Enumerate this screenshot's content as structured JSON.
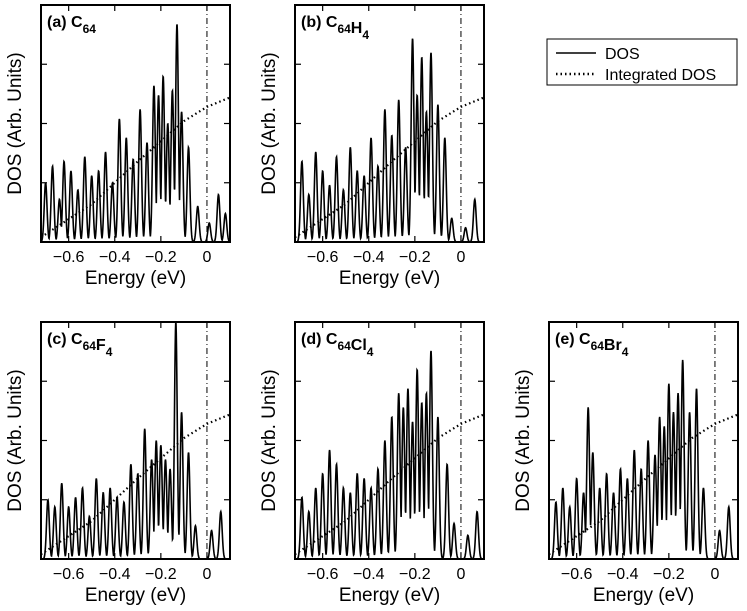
{
  "figure": {
    "legend": {
      "entries": [
        {
          "label": "DOS",
          "style": "solid"
        },
        {
          "label": "Integrated DOS",
          "style": "dotted"
        }
      ]
    }
  },
  "chart_data": [
    {
      "type": "line",
      "panel_label": "(a) C",
      "formula": [
        [
          "C",
          "64"
        ]
      ],
      "xlabel": "Energy (eV)",
      "ylabel": "DOS (Arb. Units)",
      "xlim": [
        -0.72,
        0.1
      ],
      "ylim": [
        0,
        1.0
      ],
      "xticks": [
        -0.6,
        -0.4,
        -0.2,
        0
      ],
      "xtick_labels": [
        "−0.6",
        "−0.4",
        "−0.2",
        "0"
      ],
      "fermi_level": 0,
      "peaks": [
        [
          -0.7,
          0.25
        ],
        [
          -0.67,
          0.32
        ],
        [
          -0.64,
          0.18
        ],
        [
          -0.62,
          0.34
        ],
        [
          -0.59,
          0.3
        ],
        [
          -0.56,
          0.22
        ],
        [
          -0.53,
          0.36
        ],
        [
          -0.5,
          0.28
        ],
        [
          -0.47,
          0.3
        ],
        [
          -0.44,
          0.38
        ],
        [
          -0.41,
          0.25
        ],
        [
          -0.38,
          0.52
        ],
        [
          -0.35,
          0.44
        ],
        [
          -0.32,
          0.35
        ],
        [
          -0.29,
          0.56
        ],
        [
          -0.26,
          0.42
        ],
        [
          -0.23,
          0.66
        ],
        [
          -0.21,
          0.62
        ],
        [
          -0.19,
          0.7
        ],
        [
          -0.17,
          0.5
        ],
        [
          -0.15,
          0.64
        ],
        [
          -0.13,
          0.92
        ],
        [
          -0.11,
          0.55
        ],
        [
          -0.08,
          0.4
        ],
        [
          -0.04,
          0.15
        ],
        [
          0.01,
          0.08
        ],
        [
          0.05,
          0.2
        ],
        [
          0.08,
          0.12
        ]
      ],
      "peak_width": 0.0085,
      "integrated_dos": {
        "x": [
          -0.72,
          -0.5,
          -0.3,
          -0.1,
          0.0,
          0.1
        ],
        "y": [
          0.02,
          0.16,
          0.34,
          0.51,
          0.57,
          0.61
        ]
      }
    },
    {
      "type": "line",
      "panel_label": "(b) C",
      "formula": [
        [
          "C",
          "64"
        ],
        [
          "H",
          "4"
        ]
      ],
      "xlabel": "Energy (eV)",
      "ylabel": "DOS (Arb. Units)",
      "xlim": [
        -0.72,
        0.1
      ],
      "ylim": [
        0,
        1.0
      ],
      "xticks": [
        -0.6,
        -0.4,
        -0.2,
        0
      ],
      "xtick_labels": [
        "−0.6",
        "−0.4",
        "−0.2",
        "0"
      ],
      "fermi_level": 0,
      "peaks": [
        [
          -0.69,
          0.34
        ],
        [
          -0.66,
          0.2
        ],
        [
          -0.63,
          0.38
        ],
        [
          -0.6,
          0.3
        ],
        [
          -0.57,
          0.24
        ],
        [
          -0.54,
          0.36
        ],
        [
          -0.51,
          0.22
        ],
        [
          -0.48,
          0.4
        ],
        [
          -0.45,
          0.3
        ],
        [
          -0.42,
          0.28
        ],
        [
          -0.39,
          0.44
        ],
        [
          -0.36,
          0.32
        ],
        [
          -0.33,
          0.56
        ],
        [
          -0.3,
          0.45
        ],
        [
          -0.27,
          0.6
        ],
        [
          -0.24,
          0.4
        ],
        [
          -0.21,
          0.86
        ],
        [
          -0.19,
          0.62
        ],
        [
          -0.17,
          0.78
        ],
        [
          -0.15,
          0.55
        ],
        [
          -0.13,
          0.8
        ],
        [
          -0.1,
          0.58
        ],
        [
          -0.07,
          0.44
        ],
        [
          -0.04,
          0.1
        ],
        [
          0.02,
          0.06
        ],
        [
          0.06,
          0.18
        ]
      ],
      "peak_width": 0.0085,
      "integrated_dos": {
        "x": [
          -0.72,
          -0.5,
          -0.3,
          -0.1,
          0.0,
          0.1
        ],
        "y": [
          0.02,
          0.16,
          0.34,
          0.51,
          0.57,
          0.61
        ]
      }
    },
    {
      "type": "line",
      "panel_label": "(c) C",
      "formula": [
        [
          "C",
          "64"
        ],
        [
          "F",
          "4"
        ]
      ],
      "xlabel": "Energy (eV)",
      "ylabel": "DOS (Arb. Units)",
      "xlim": [
        -0.72,
        0.1
      ],
      "ylim": [
        0,
        1.0
      ],
      "xticks": [
        -0.6,
        -0.4,
        -0.2,
        0
      ],
      "xtick_labels": [
        "−0.6",
        "−0.4",
        "−0.2",
        "0"
      ],
      "fermi_level": 0,
      "peaks": [
        [
          -0.69,
          0.25
        ],
        [
          -0.66,
          0.22
        ],
        [
          -0.63,
          0.32
        ],
        [
          -0.6,
          0.22
        ],
        [
          -0.57,
          0.26
        ],
        [
          -0.54,
          0.3
        ],
        [
          -0.51,
          0.18
        ],
        [
          -0.48,
          0.34
        ],
        [
          -0.45,
          0.28
        ],
        [
          -0.42,
          0.3
        ],
        [
          -0.39,
          0.26
        ],
        [
          -0.36,
          0.24
        ],
        [
          -0.33,
          0.4
        ],
        [
          -0.3,
          0.36
        ],
        [
          -0.27,
          0.55
        ],
        [
          -0.24,
          0.42
        ],
        [
          -0.22,
          0.5
        ],
        [
          -0.2,
          0.48
        ],
        [
          -0.18,
          0.42
        ],
        [
          -0.16,
          0.38
        ],
        [
          -0.135,
          1.0
        ],
        [
          -0.11,
          0.62
        ],
        [
          -0.08,
          0.45
        ],
        [
          -0.05,
          0.14
        ],
        [
          0.02,
          0.12
        ],
        [
          0.06,
          0.2
        ]
      ],
      "peak_width": 0.0085,
      "integrated_dos": {
        "x": [
          -0.72,
          -0.5,
          -0.3,
          -0.1,
          0.0,
          0.1
        ],
        "y": [
          0.02,
          0.16,
          0.34,
          0.51,
          0.57,
          0.61
        ]
      }
    },
    {
      "type": "line",
      "panel_label": "(d) C",
      "formula": [
        [
          "C",
          "64"
        ],
        [
          "Cl",
          "4"
        ]
      ],
      "xlabel": "Energy (eV)",
      "ylabel": "DOS (Arb. Units)",
      "xlim": [
        -0.72,
        0.1
      ],
      "ylim": [
        0,
        1.0
      ],
      "xticks": [
        -0.6,
        -0.4,
        -0.2,
        0
      ],
      "xtick_labels": [
        "−0.6",
        "−0.4",
        "−0.2",
        "0"
      ],
      "fermi_level": 0,
      "peaks": [
        [
          -0.69,
          0.26
        ],
        [
          -0.66,
          0.2
        ],
        [
          -0.63,
          0.3
        ],
        [
          -0.6,
          0.36
        ],
        [
          -0.57,
          0.46
        ],
        [
          -0.54,
          0.4
        ],
        [
          -0.51,
          0.3
        ],
        [
          -0.48,
          0.28
        ],
        [
          -0.45,
          0.36
        ],
        [
          -0.42,
          0.34
        ],
        [
          -0.39,
          0.3
        ],
        [
          -0.36,
          0.38
        ],
        [
          -0.33,
          0.5
        ],
        [
          -0.3,
          0.6
        ],
        [
          -0.27,
          0.7
        ],
        [
          -0.25,
          0.64
        ],
        [
          -0.23,
          0.72
        ],
        [
          -0.21,
          0.58
        ],
        [
          -0.19,
          0.8
        ],
        [
          -0.17,
          0.66
        ],
        [
          -0.15,
          0.7
        ],
        [
          -0.13,
          0.88
        ],
        [
          -0.1,
          0.6
        ],
        [
          -0.06,
          0.4
        ],
        [
          -0.03,
          0.15
        ],
        [
          0.03,
          0.1
        ],
        [
          0.07,
          0.2
        ]
      ],
      "peak_width": 0.0085,
      "integrated_dos": {
        "x": [
          -0.72,
          -0.5,
          -0.3,
          -0.1,
          0.0,
          0.1
        ],
        "y": [
          0.02,
          0.16,
          0.34,
          0.51,
          0.57,
          0.61
        ]
      }
    },
    {
      "type": "line",
      "panel_label": "(e) C",
      "formula": [
        [
          "C",
          "64"
        ],
        [
          "Br",
          "4"
        ]
      ],
      "xlabel": "Energy (eV)",
      "ylabel": "DOS (Arb. Units)",
      "xlim": [
        -0.72,
        0.1
      ],
      "ylim": [
        0,
        1.0
      ],
      "xticks": [
        -0.6,
        -0.4,
        -0.2,
        0
      ],
      "xtick_labels": [
        "−0.6",
        "−0.4",
        "−0.2",
        "0"
      ],
      "fermi_level": 0,
      "peaks": [
        [
          -0.69,
          0.24
        ],
        [
          -0.66,
          0.3
        ],
        [
          -0.63,
          0.22
        ],
        [
          -0.6,
          0.34
        ],
        [
          -0.57,
          0.28
        ],
        [
          -0.55,
          0.64
        ],
        [
          -0.53,
          0.45
        ],
        [
          -0.5,
          0.3
        ],
        [
          -0.47,
          0.36
        ],
        [
          -0.44,
          0.28
        ],
        [
          -0.41,
          0.38
        ],
        [
          -0.38,
          0.34
        ],
        [
          -0.35,
          0.46
        ],
        [
          -0.32,
          0.38
        ],
        [
          -0.29,
          0.5
        ],
        [
          -0.26,
          0.44
        ],
        [
          -0.24,
          0.6
        ],
        [
          -0.22,
          0.56
        ],
        [
          -0.2,
          0.74
        ],
        [
          -0.18,
          0.62
        ],
        [
          -0.16,
          0.7
        ],
        [
          -0.14,
          0.84
        ],
        [
          -0.11,
          0.62
        ],
        [
          -0.08,
          0.72
        ],
        [
          -0.05,
          0.3
        ],
        [
          0.02,
          0.12
        ],
        [
          0.06,
          0.22
        ]
      ],
      "peak_width": 0.0085,
      "integrated_dos": {
        "x": [
          -0.72,
          -0.5,
          -0.3,
          -0.1,
          0.0,
          0.1
        ],
        "y": [
          0.02,
          0.16,
          0.34,
          0.51,
          0.57,
          0.61
        ]
      }
    }
  ]
}
